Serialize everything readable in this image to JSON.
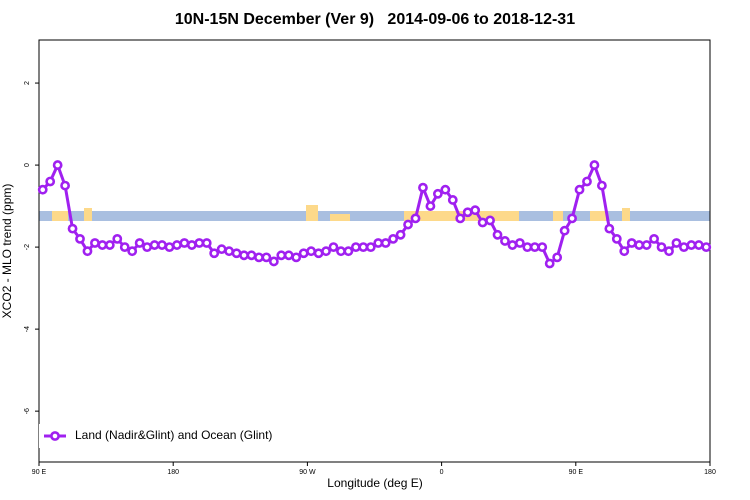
{
  "chart_data": {
    "type": "line",
    "title": "10N-15N December (Ver 9)   2014-09-06 to 2018-12-31",
    "x_label": "Longitude (deg E)",
    "y_label": "XCO2 - MLO trend (ppm)",
    "xlim": [
      90,
      540
    ],
    "ylim": [
      -7.24,
      3.05
    ],
    "xticks": [
      {
        "value": 90,
        "label": "90 E"
      },
      180,
      {
        "value": 270,
        "label": "90 W"
      },
      {
        "value": 360,
        "label": "0"
      },
      {
        "value": 450,
        "label": "90 E"
      },
      {
        "value": 540,
        "label": "180"
      }
    ],
    "yticks": [
      -6,
      -4,
      -2,
      0,
      2
    ],
    "legend": "bottom-left",
    "x": [
      92.5,
      97.5,
      102.5,
      107.5,
      112.5,
      117.5,
      122.5,
      127.5,
      132.5,
      137.5,
      142.5,
      147.5,
      152.5,
      157.5,
      162.5,
      167.5,
      172.5,
      177.5,
      182.5,
      187.5,
      192.5,
      197.5,
      202.5,
      207.5,
      212.5,
      217.5,
      222.5,
      227.5,
      232.5,
      237.5,
      242.5,
      247.5,
      252.5,
      257.5,
      262.5,
      267.5,
      272.5,
      277.5,
      282.5,
      287.5,
      292.5,
      297.5,
      302.5,
      307.5,
      312.5,
      317.5,
      322.5,
      327.5,
      332.5,
      337.5,
      342.5,
      347.5,
      352.5,
      357.5,
      362.5,
      367.5,
      372.5,
      377.5,
      382.5,
      387.5,
      392.5,
      397.5,
      402.5,
      407.5,
      412.5,
      417.5,
      422.5,
      427.5,
      432.5,
      437.5,
      442.5,
      447.5,
      452.5,
      457.5,
      462.5,
      467.5,
      472.5,
      477.5,
      482.5,
      487.5,
      492.5,
      497.5,
      502.5,
      507.5,
      512.5,
      517.5,
      522.5,
      527.5,
      532.5,
      537.5
    ],
    "series": [
      {
        "name": "Land (Nadir&Glint) and Ocean (Glint)",
        "color": "#a020f0",
        "values": [
          -0.6,
          -0.4,
          0,
          -0.5,
          -1.55,
          -1.8,
          -2.1,
          -1.9,
          -1.95,
          -1.95,
          -1.8,
          -2.0,
          -2.1,
          -1.9,
          -2.0,
          -1.95,
          -1.95,
          -2.0,
          -1.95,
          -1.9,
          -1.95,
          -1.9,
          -1.9,
          -2.15,
          -2.05,
          -2.1,
          -2.15,
          -2.2,
          -2.2,
          -2.25,
          -2.25,
          -2.35,
          -2.2,
          -2.2,
          -2.25,
          -2.15,
          -2.1,
          -2.15,
          -2.1,
          -2.0,
          -2.1,
          -2.1,
          -2.0,
          -2.0,
          -2.0,
          -1.9,
          -1.9,
          -1.8,
          -1.7,
          -1.45,
          -1.3,
          -0.55,
          -1.0,
          -0.7,
          -0.6,
          -0.85,
          -1.3,
          -1.15,
          -1.1,
          -1.4,
          -1.35,
          -1.7,
          -1.85,
          -1.95,
          -1.9,
          -2.0,
          -2.0,
          -2.0,
          -2.4,
          -2.25,
          -1.6,
          -1.3,
          -0.6,
          -0.4,
          0,
          -0.5,
          -1.55,
          -1.8,
          -2.1,
          -1.9,
          -1.95,
          -1.95,
          -1.8,
          -2.0,
          -2.1,
          -1.9,
          -2.0,
          -1.95,
          -1.95,
          -2.0
        ]
      }
    ]
  }
}
